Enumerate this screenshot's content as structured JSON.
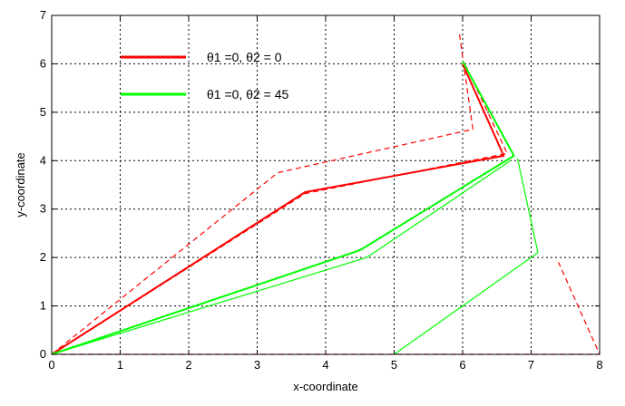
{
  "chart_data": {
    "type": "line",
    "title": "",
    "xlabel": "x-coordinate",
    "ylabel": "y-coordinate",
    "xlim": [
      0,
      8
    ],
    "ylim": [
      0,
      7
    ],
    "xticks": [
      "0",
      "1",
      "2",
      "3",
      "4",
      "5",
      "6",
      "7",
      "8"
    ],
    "yticks": [
      "0",
      "1",
      "2",
      "3",
      "4",
      "5",
      "6",
      "7"
    ],
    "grid": true,
    "legend_position": "top-left",
    "legend": [
      {
        "label": "θ1 =0, θ2 = 0",
        "color": "#ff0000"
      },
      {
        "label": "θ1 =0, θ2 = 45",
        "color": "#00ff00"
      }
    ],
    "series": [
      {
        "group": 0,
        "color": "#ff0000",
        "style": "solid",
        "width": 2,
        "points": [
          [
            0,
            0
          ],
          [
            3.7,
            3.35
          ],
          [
            6.6,
            4.1
          ],
          [
            6.0,
            6.0
          ]
        ]
      },
      {
        "group": 0,
        "color": "#ff0000",
        "style": "dashed",
        "width": 1.2,
        "points": [
          [
            0,
            0
          ],
          [
            3.7,
            3.32
          ],
          [
            6.65,
            4.15
          ],
          [
            6.05,
            5.95
          ]
        ]
      },
      {
        "group": 0,
        "color": "#ff0000",
        "style": "dashed",
        "width": 1.2,
        "points": [
          [
            0,
            0
          ],
          [
            3.3,
            3.75
          ],
          [
            6.15,
            4.65
          ],
          [
            5.95,
            6.65
          ]
        ]
      },
      {
        "group": 0,
        "color": "#ff0000",
        "style": "dashed",
        "width": 1.2,
        "points": [
          [
            0,
            0
          ],
          [
            8.0,
            0
          ],
          [
            7.4,
            1.9
          ]
        ]
      },
      {
        "group": 1,
        "color": "#00ff00",
        "style": "solid",
        "width": 2,
        "points": [
          [
            0,
            0
          ],
          [
            4.5,
            2.15
          ],
          [
            6.75,
            4.1
          ],
          [
            6.0,
            6.05
          ]
        ]
      },
      {
        "group": 1,
        "color": "#00ff00",
        "style": "solid",
        "width": 1.2,
        "points": [
          [
            0,
            0
          ],
          [
            4.6,
            2.0
          ],
          [
            6.7,
            4.0
          ]
        ]
      },
      {
        "group": 1,
        "color": "#00ff00",
        "style": "solid",
        "width": 1.2,
        "points": [
          [
            6.8,
            4.05
          ],
          [
            7.1,
            2.1
          ],
          [
            5.0,
            0.0
          ]
        ]
      }
    ]
  }
}
